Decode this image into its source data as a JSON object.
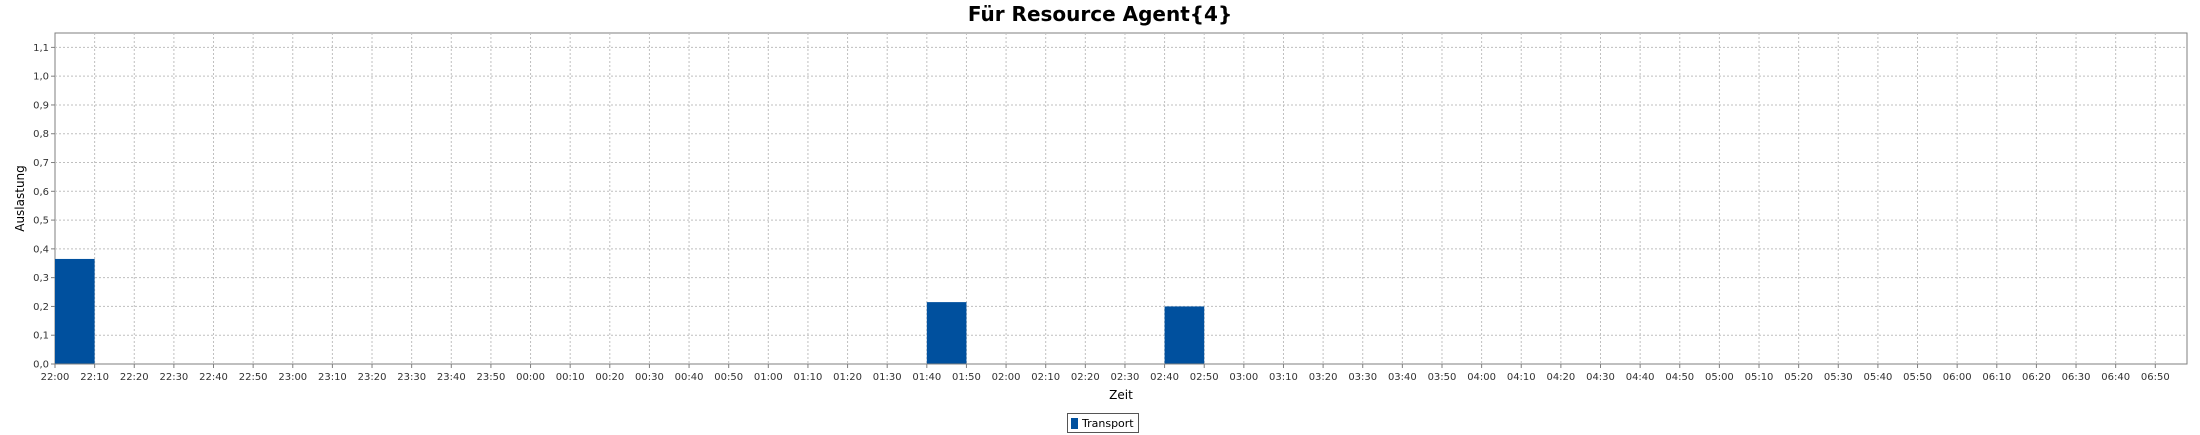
{
  "chart_data": {
    "type": "bar",
    "title": "Für Resource Agent{4}",
    "xlabel": "Zeit",
    "ylabel": "Auslastung",
    "ylim": [
      0,
      1.15
    ],
    "yticks": [
      "0,0",
      "0,1",
      "0,2",
      "0,3",
      "0,4",
      "0,5",
      "0,6",
      "0,7",
      "0,8",
      "0,9",
      "1,0",
      "1,1"
    ],
    "xticks": [
      "22:00",
      "22:10",
      "22:20",
      "22:30",
      "22:40",
      "22:50",
      "23:00",
      "23:10",
      "23:20",
      "23:30",
      "23:40",
      "23:50",
      "00:00",
      "00:10",
      "00:20",
      "00:30",
      "00:40",
      "00:50",
      "01:00",
      "01:10",
      "01:20",
      "01:30",
      "01:40",
      "01:50",
      "02:00",
      "02:10",
      "02:20",
      "02:30",
      "02:40",
      "02:50",
      "03:00",
      "03:10",
      "03:20",
      "03:30",
      "03:40",
      "03:50",
      "04:00",
      "04:10",
      "04:20",
      "04:30",
      "04:40",
      "04:50",
      "05:00",
      "05:10",
      "05:20",
      "05:30",
      "05:40",
      "05:50",
      "06:00",
      "06:10",
      "06:20",
      "06:30",
      "06:40",
      "06:50"
    ],
    "xlim": [
      "22:00",
      "06:58"
    ],
    "grid": true,
    "legend_position": "bottom-center",
    "series": [
      {
        "name": "Transport",
        "color": "#00509e",
        "bars": [
          {
            "start": "22:00",
            "end": "22:10",
            "value": 0.365
          },
          {
            "start": "01:40",
            "end": "01:50",
            "value": 0.215
          },
          {
            "start": "02:40",
            "end": "02:50",
            "value": 0.2
          }
        ]
      }
    ]
  }
}
